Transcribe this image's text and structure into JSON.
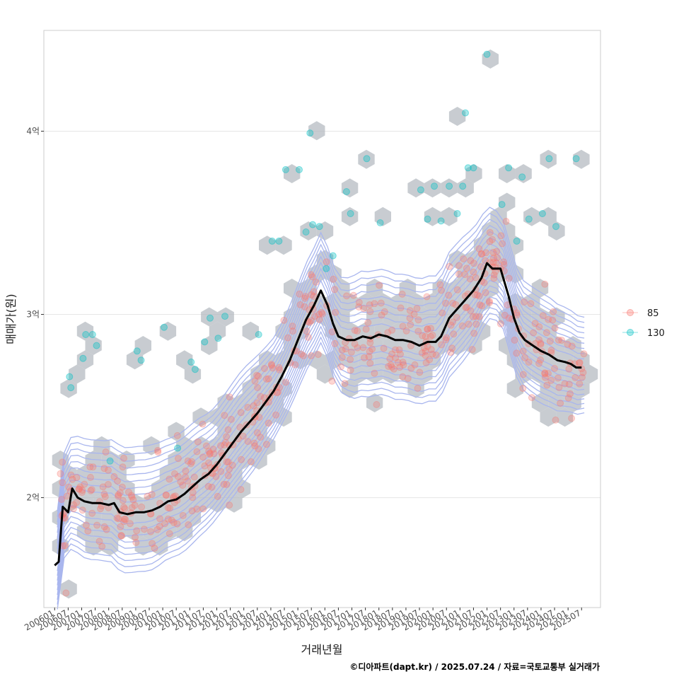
{
  "chart_data": {
    "type": "scatter",
    "xlabel": "거래년월",
    "ylabel": "매매가(원)",
    "caption": "©디아파트(dapt.kr) / 2025.07.24 / 자료=국토교통부 실거래가",
    "x_ticks": [
      "200601",
      "200607",
      "200701",
      "200707",
      "200801",
      "200807",
      "200901",
      "200907",
      "201001",
      "201007",
      "201101",
      "201107",
      "201201",
      "201207",
      "201301",
      "201307",
      "201401",
      "201407",
      "201501",
      "201507",
      "201601",
      "201607",
      "201701",
      "201707",
      "201801",
      "201807",
      "201901",
      "201907",
      "202001",
      "202007",
      "202101",
      "202107",
      "202201",
      "202207",
      "202301",
      "202307",
      "202401",
      "202407",
      "202501",
      "202507"
    ],
    "y_ticks": [
      {
        "value": 2.0,
        "label": "2억"
      },
      {
        "value": 3.0,
        "label": "3억"
      },
      {
        "value": 4.0,
        "label": "4억"
      }
    ],
    "ylim": [
      1.4,
      4.55
    ],
    "xlim": [
      2005.6,
      2026.2
    ],
    "grid": true,
    "legend_position": "right",
    "legend": [
      {
        "name": "85",
        "color": "#F8766D"
      },
      {
        "name": "130",
        "color": "#00BFC4"
      }
    ],
    "colors": {
      "s85": "#F8766D",
      "s130": "#00BFC4",
      "hex": "#b0b6bd",
      "contour": "#a9b6ee",
      "line": "#000000",
      "panel_border": "#cccccc",
      "grid": "#e6e6e6"
    },
    "trend_line": [
      [
        2006.0,
        1.63
      ],
      [
        2006.15,
        1.65
      ],
      [
        2006.3,
        1.95
      ],
      [
        2006.5,
        1.92
      ],
      [
        2006.65,
        2.05
      ],
      [
        2006.85,
        2.0
      ],
      [
        2007.1,
        1.98
      ],
      [
        2007.4,
        1.97
      ],
      [
        2007.7,
        1.97
      ],
      [
        2008.0,
        1.96
      ],
      [
        2008.2,
        1.97
      ],
      [
        2008.4,
        1.92
      ],
      [
        2008.7,
        1.91
      ],
      [
        2009.0,
        1.92
      ],
      [
        2009.3,
        1.92
      ],
      [
        2009.6,
        1.93
      ],
      [
        2009.9,
        1.95
      ],
      [
        2010.2,
        1.98
      ],
      [
        2010.5,
        1.99
      ],
      [
        2010.8,
        2.02
      ],
      [
        2011.1,
        2.06
      ],
      [
        2011.4,
        2.1
      ],
      [
        2011.7,
        2.13
      ],
      [
        2012.0,
        2.18
      ],
      [
        2012.3,
        2.24
      ],
      [
        2012.6,
        2.3
      ],
      [
        2012.9,
        2.36
      ],
      [
        2013.2,
        2.41
      ],
      [
        2013.5,
        2.46
      ],
      [
        2013.8,
        2.52
      ],
      [
        2014.1,
        2.58
      ],
      [
        2014.4,
        2.66
      ],
      [
        2014.7,
        2.75
      ],
      [
        2015.0,
        2.86
      ],
      [
        2015.3,
        2.97
      ],
      [
        2015.6,
        3.05
      ],
      [
        2015.85,
        3.13
      ],
      [
        2016.1,
        3.05
      ],
      [
        2016.3,
        2.95
      ],
      [
        2016.5,
        2.88
      ],
      [
        2016.8,
        2.86
      ],
      [
        2017.1,
        2.86
      ],
      [
        2017.4,
        2.88
      ],
      [
        2017.7,
        2.87
      ],
      [
        2018.0,
        2.89
      ],
      [
        2018.3,
        2.88
      ],
      [
        2018.6,
        2.86
      ],
      [
        2018.9,
        2.86
      ],
      [
        2019.2,
        2.85
      ],
      [
        2019.5,
        2.83
      ],
      [
        2019.8,
        2.85
      ],
      [
        2020.1,
        2.85
      ],
      [
        2020.3,
        2.88
      ],
      [
        2020.6,
        2.98
      ],
      [
        2020.9,
        3.03
      ],
      [
        2021.2,
        3.08
      ],
      [
        2021.5,
        3.13
      ],
      [
        2021.8,
        3.2
      ],
      [
        2022.0,
        3.28
      ],
      [
        2022.2,
        3.25
      ],
      [
        2022.5,
        3.25
      ],
      [
        2022.8,
        3.1
      ],
      [
        2023.0,
        2.98
      ],
      [
        2023.2,
        2.9
      ],
      [
        2023.4,
        2.86
      ],
      [
        2023.7,
        2.83
      ],
      [
        2024.0,
        2.8
      ],
      [
        2024.3,
        2.78
      ],
      [
        2024.6,
        2.75
      ],
      [
        2024.9,
        2.74
      ],
      [
        2025.1,
        2.73
      ],
      [
        2025.3,
        2.71
      ],
      [
        2025.5,
        2.71
      ]
    ],
    "points_130": [
      [
        2006.55,
        2.66
      ],
      [
        2006.6,
        2.6
      ],
      [
        2007.05,
        2.76
      ],
      [
        2007.15,
        2.89
      ],
      [
        2007.4,
        2.89
      ],
      [
        2007.55,
        2.83
      ],
      [
        2008.05,
        2.2
      ],
      [
        2009.05,
        2.8
      ],
      [
        2009.2,
        2.75
      ],
      [
        2010.05,
        2.93
      ],
      [
        2010.55,
        2.27
      ],
      [
        2011.05,
        2.74
      ],
      [
        2011.2,
        2.7
      ],
      [
        2011.55,
        2.85
      ],
      [
        2011.75,
        2.98
      ],
      [
        2012.05,
        2.87
      ],
      [
        2012.3,
        2.99
      ],
      [
        2013.55,
        2.89
      ],
      [
        2014.05,
        3.4
      ],
      [
        2014.3,
        3.4
      ],
      [
        2014.55,
        3.79
      ],
      [
        2015.05,
        3.79
      ],
      [
        2015.3,
        3.45
      ],
      [
        2015.45,
        3.99
      ],
      [
        2015.55,
        3.49
      ],
      [
        2015.8,
        3.48
      ],
      [
        2016.05,
        3.25
      ],
      [
        2016.3,
        3.32
      ],
      [
        2016.8,
        3.67
      ],
      [
        2016.95,
        3.55
      ],
      [
        2017.55,
        3.85
      ],
      [
        2018.05,
        3.5
      ],
      [
        2019.55,
        3.68
      ],
      [
        2019.8,
        3.52
      ],
      [
        2020.05,
        3.7
      ],
      [
        2020.3,
        3.51
      ],
      [
        2020.6,
        3.7
      ],
      [
        2020.9,
        3.55
      ],
      [
        2021.1,
        3.7
      ],
      [
        2021.2,
        4.1
      ],
      [
        2021.3,
        3.8
      ],
      [
        2021.5,
        3.8
      ],
      [
        2022.0,
        4.42
      ],
      [
        2022.55,
        3.6
      ],
      [
        2022.8,
        3.8
      ],
      [
        2023.1,
        3.4
      ],
      [
        2023.3,
        3.75
      ],
      [
        2023.55,
        3.52
      ],
      [
        2024.05,
        3.55
      ],
      [
        2024.3,
        3.85
      ],
      [
        2024.55,
        3.48
      ],
      [
        2025.3,
        3.85
      ]
    ]
  }
}
